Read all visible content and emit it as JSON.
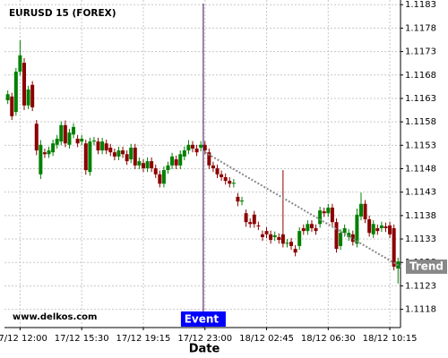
{
  "chart_data": {
    "type": "candlestick",
    "title": "EURUSD 15 (FOREX)",
    "watermark": "www.delkos.com",
    "x_label": "Date",
    "up_color": "#008000",
    "down_color": "#8b0000",
    "grid": true,
    "xlim": [
      -0.8,
      95.6
    ],
    "ylim": [
      1.11141,
      1.1184
    ],
    "xticks": [
      {
        "value": 3,
        "label": "17/12 12:00"
      },
      {
        "value": 18,
        "label": "17/12 15:30"
      },
      {
        "value": 33,
        "label": "17/12 19:15"
      },
      {
        "value": 48,
        "label": "17/12 23:00"
      },
      {
        "value": 63,
        "label": "18/12 02:45"
      },
      {
        "value": 78,
        "label": "18/12 06:30"
      },
      {
        "value": 93,
        "label": "18/12 10:15"
      }
    ],
    "yticks": [
      1.1118,
      1.1123,
      1.1128,
      1.1133,
      1.1138,
      1.1143,
      1.1148,
      1.1153,
      1.1158,
      1.1163,
      1.1168,
      1.1173,
      1.1178,
      1.1183
    ],
    "open": [
      1.11626,
      1.11634,
      1.11601,
      1.11687,
      1.11706,
      1.11615,
      1.11659,
      1.11576,
      1.11468,
      1.11515,
      1.11511,
      1.11515,
      1.11531,
      1.11538,
      1.11573,
      1.11531,
      1.11553,
      1.11544,
      1.11538,
      1.11534,
      1.11473,
      1.11538,
      1.11538,
      1.11519,
      1.11534,
      1.11525,
      1.11515,
      1.11506,
      1.11519,
      1.11511,
      1.115,
      1.11525,
      1.11487,
      1.11492,
      1.11481,
      1.11496,
      1.11481,
      1.11468,
      1.11448,
      1.11477,
      1.11487,
      1.115,
      1.11487,
      1.11506,
      1.11519,
      1.11531,
      1.11523,
      1.11525,
      1.11531,
      1.11515,
      1.11487,
      1.11481,
      1.11468,
      1.11462,
      1.11454,
      1.11448,
      1.1142,
      1.1141,
      1.11385,
      1.11366,
      1.11382,
      1.11359,
      1.1134,
      1.11347,
      1.1134,
      1.11334,
      1.11334,
      1.1134,
      1.1132,
      1.11324,
      1.11309,
      1.11315,
      1.11353,
      1.11347,
      1.11362,
      1.11353,
      1.11362,
      1.11389,
      1.11385,
      1.11397,
      1.11366,
      1.11315,
      1.11343,
      1.11334,
      1.1134,
      1.1132,
      1.11378,
      1.11405,
      1.11372,
      1.1134,
      1.11353,
      1.11353,
      1.11357,
      1.11359,
      1.11353,
      1.11267
    ],
    "high": [
      1.11647,
      1.11642,
      1.11695,
      1.11754,
      1.11716,
      1.11657,
      1.11667,
      1.11584,
      1.11541,
      1.11523,
      1.11527,
      1.11542,
      1.11552,
      1.11581,
      1.11583,
      1.11565,
      1.11577,
      1.11552,
      1.11552,
      1.11542,
      1.11546,
      1.11548,
      1.11546,
      1.11546,
      1.11542,
      1.11533,
      1.11523,
      1.11527,
      1.11527,
      1.11519,
      1.11533,
      1.11533,
      1.11504,
      1.115,
      1.11504,
      1.11504,
      1.11489,
      1.11476,
      1.11485,
      1.11495,
      1.11514,
      1.11508,
      1.11519,
      1.11527,
      1.11541,
      1.11539,
      1.11531,
      1.11539,
      1.11539,
      1.11523,
      1.11495,
      1.11489,
      1.11476,
      1.1147,
      1.11462,
      1.11458,
      1.11428,
      1.1142,
      1.11393,
      1.11374,
      1.1139,
      1.11367,
      1.11348,
      1.11355,
      1.11348,
      1.11346,
      1.11342,
      1.11477,
      1.1133,
      1.11332,
      1.11317,
      1.11355,
      1.11361,
      1.1137,
      1.1137,
      1.11361,
      1.11399,
      1.11397,
      1.11405,
      1.11405,
      1.11374,
      1.11351,
      1.11361,
      1.11351,
      1.11348,
      1.11395,
      1.11429,
      1.11413,
      1.1138,
      1.1137,
      1.11361,
      1.11367,
      1.11365,
      1.11367,
      1.11361,
      1.1129
    ],
    "low": [
      1.11618,
      1.11584,
      1.11593,
      1.11679,
      1.11605,
      1.11607,
      1.11603,
      1.11509,
      1.11458,
      1.11503,
      1.11503,
      1.11507,
      1.11523,
      1.1153,
      1.11526,
      1.11523,
      1.11545,
      1.11526,
      1.1153,
      1.11467,
      1.11465,
      1.1153,
      1.11511,
      1.11511,
      1.11511,
      1.11507,
      1.11498,
      1.11498,
      1.11503,
      1.11488,
      1.11492,
      1.11479,
      1.11479,
      1.11473,
      1.11473,
      1.11473,
      1.1146,
      1.1144,
      1.1144,
      1.11469,
      1.11479,
      1.11479,
      1.11479,
      1.11498,
      1.11511,
      1.11515,
      1.11507,
      1.11517,
      1.11511,
      1.11479,
      1.11473,
      1.1146,
      1.11454,
      1.11446,
      1.1144,
      1.1144,
      1.114,
      1.11402,
      1.11356,
      1.11354,
      1.11354,
      1.11349,
      1.11326,
      1.11332,
      1.1132,
      1.11326,
      1.1132,
      1.11312,
      1.11312,
      1.11307,
      1.11293,
      1.11307,
      1.11339,
      1.11339,
      1.11345,
      1.11339,
      1.11354,
      1.11377,
      1.11377,
      1.11358,
      1.11301,
      1.11307,
      1.11335,
      1.11326,
      1.11316,
      1.11312,
      1.1137,
      1.11364,
      1.11335,
      1.11332,
      1.11339,
      1.11345,
      1.11345,
      1.11332,
      1.11263,
      1.11235
    ],
    "close": [
      1.11639,
      1.11592,
      1.11687,
      1.11722,
      1.11615,
      1.11649,
      1.11611,
      1.11519,
      1.11531,
      1.11511,
      1.11519,
      1.11534,
      1.11544,
      1.11573,
      1.11534,
      1.11557,
      1.11569,
      1.11534,
      1.11544,
      1.11477,
      1.11538,
      1.1154,
      1.11519,
      1.11538,
      1.11519,
      1.11515,
      1.11506,
      1.11519,
      1.11511,
      1.11496,
      1.11525,
      1.11487,
      1.11496,
      1.11481,
      1.11496,
      1.11481,
      1.11468,
      1.11448,
      1.11477,
      1.11487,
      1.11506,
      1.11487,
      1.11511,
      1.11519,
      1.11531,
      1.11523,
      1.11515,
      1.11531,
      1.11519,
      1.11487,
      1.11481,
      1.11468,
      1.11462,
      1.11454,
      1.11448,
      1.1145,
      1.1141,
      1.11412,
      1.11366,
      1.11362,
      1.11362,
      1.11357,
      1.11334,
      1.1134,
      1.11328,
      1.11338,
      1.11328,
      1.1132,
      1.11322,
      1.11315,
      1.11301,
      1.11347,
      1.11347,
      1.11362,
      1.11353,
      1.11347,
      1.11391,
      1.11385,
      1.11397,
      1.11366,
      1.11309,
      1.11343,
      1.11353,
      1.11343,
      1.11324,
      1.11382,
      1.11405,
      1.11372,
      1.11343,
      1.11362,
      1.11347,
      1.11359,
      1.11353,
      1.1134,
      1.11271,
      1.11282
    ],
    "trend": {
      "label": "Trend",
      "x": [
        48,
        95.6
      ],
      "y": [
        1.11515,
        1.11271
      ],
      "color": "#888888"
    },
    "event": {
      "label": "Event",
      "x": 47.6,
      "color": "#0000ff"
    }
  }
}
